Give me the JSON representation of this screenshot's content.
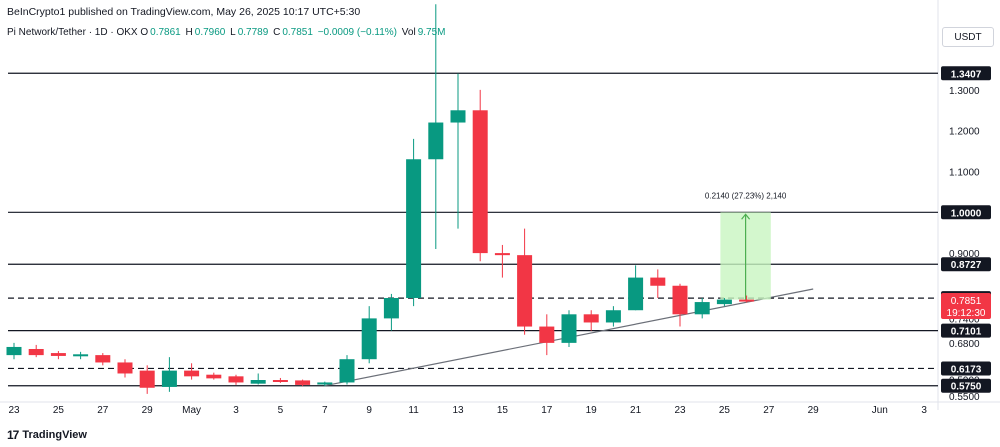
{
  "header": {
    "published": "BeInCrypto1 published on TradingView.com, May 26, 2025 10:17 UTC+5:30",
    "symbol": "Pi Network/Tether · 1D · OKX",
    "open_label": "O",
    "open": "0.7861",
    "high_label": "H",
    "high": "0.7960",
    "low_label": "L",
    "low": "0.7789",
    "close_label": "C",
    "close": "0.7851",
    "change": "−0.0009 (−0.11%)",
    "vol_label": "Vol",
    "vol": "9.75M"
  },
  "price_scale": {
    "unit": "USDT"
  },
  "footer": {
    "brand": "TradingView",
    "logo": "17"
  },
  "colors": {
    "up": "#089981",
    "down": "#f23645",
    "measure_fill": "#c8f5c0",
    "measure_line": "#4caf50"
  },
  "chart_data": {
    "type": "candlestick",
    "title": "Pi Network/Tether · 1D · OKX",
    "ylim": [
      0.54,
      1.41
    ],
    "y_ticks": [
      0.55,
      0.59,
      0.62,
      0.68,
      0.74,
      0.9,
      1.1,
      1.2,
      1.3
    ],
    "y_tick_labels": [
      "0.5500",
      "0.5900",
      "0.6200",
      "0.6800",
      "0.7400",
      "0.9000",
      "1.1000",
      "1.2000",
      "1.3000"
    ],
    "x_ticks": [
      {
        "date": "2025-04-23",
        "label": "23"
      },
      {
        "date": "2025-04-25",
        "label": "25"
      },
      {
        "date": "2025-04-27",
        "label": "27"
      },
      {
        "date": "2025-04-29",
        "label": "29"
      },
      {
        "date": "2025-05-01",
        "label": "May"
      },
      {
        "date": "2025-05-03",
        "label": "3"
      },
      {
        "date": "2025-05-05",
        "label": "5"
      },
      {
        "date": "2025-05-07",
        "label": "7"
      },
      {
        "date": "2025-05-09",
        "label": "9"
      },
      {
        "date": "2025-05-11",
        "label": "11"
      },
      {
        "date": "2025-05-13",
        "label": "13"
      },
      {
        "date": "2025-05-15",
        "label": "15"
      },
      {
        "date": "2025-05-17",
        "label": "17"
      },
      {
        "date": "2025-05-19",
        "label": "19"
      },
      {
        "date": "2025-05-21",
        "label": "21"
      },
      {
        "date": "2025-05-23",
        "label": "23"
      },
      {
        "date": "2025-05-25",
        "label": "25"
      },
      {
        "date": "2025-05-27",
        "label": "27"
      },
      {
        "date": "2025-05-29",
        "label": "29"
      },
      {
        "date": "2025-06-01",
        "label": "Jun"
      },
      {
        "date": "2025-06-03",
        "label": "3"
      }
    ],
    "candles": [
      {
        "date": "2025-04-23",
        "o": 0.65,
        "h": 0.68,
        "l": 0.64,
        "c": 0.67
      },
      {
        "date": "2025-04-24",
        "o": 0.665,
        "h": 0.675,
        "l": 0.645,
        "c": 0.65
      },
      {
        "date": "2025-04-25",
        "o": 0.655,
        "h": 0.66,
        "l": 0.64,
        "c": 0.648
      },
      {
        "date": "2025-04-26",
        "o": 0.648,
        "h": 0.658,
        "l": 0.64,
        "c": 0.652
      },
      {
        "date": "2025-04-27",
        "o": 0.65,
        "h": 0.655,
        "l": 0.625,
        "c": 0.632
      },
      {
        "date": "2025-04-28",
        "o": 0.632,
        "h": 0.64,
        "l": 0.595,
        "c": 0.605
      },
      {
        "date": "2025-04-29",
        "o": 0.612,
        "h": 0.625,
        "l": 0.555,
        "c": 0.57
      },
      {
        "date": "2025-04-30",
        "o": 0.572,
        "h": 0.645,
        "l": 0.56,
        "c": 0.612
      },
      {
        "date": "2025-05-01",
        "o": 0.612,
        "h": 0.63,
        "l": 0.59,
        "c": 0.598
      },
      {
        "date": "2025-05-02",
        "o": 0.602,
        "h": 0.607,
        "l": 0.59,
        "c": 0.593
      },
      {
        "date": "2025-05-03",
        "o": 0.598,
        "h": 0.602,
        "l": 0.577,
        "c": 0.583
      },
      {
        "date": "2025-05-04",
        "o": 0.58,
        "h": 0.605,
        "l": 0.578,
        "c": 0.589
      },
      {
        "date": "2025-05-05",
        "o": 0.589,
        "h": 0.594,
        "l": 0.582,
        "c": 0.586
      },
      {
        "date": "2025-05-06",
        "o": 0.588,
        "h": 0.59,
        "l": 0.574,
        "c": 0.577
      },
      {
        "date": "2025-05-07",
        "o": 0.578,
        "h": 0.585,
        "l": 0.574,
        "c": 0.583
      },
      {
        "date": "2025-05-08",
        "o": 0.583,
        "h": 0.65,
        "l": 0.578,
        "c": 0.64
      },
      {
        "date": "2025-05-09",
        "o": 0.64,
        "h": 0.77,
        "l": 0.63,
        "c": 0.74
      },
      {
        "date": "2025-05-10",
        "o": 0.74,
        "h": 0.8,
        "l": 0.71,
        "c": 0.79
      },
      {
        "date": "2025-05-11",
        "o": 0.79,
        "h": 1.18,
        "l": 0.77,
        "c": 1.13
      },
      {
        "date": "2025-05-12",
        "o": 1.13,
        "h": 1.51,
        "l": 0.91,
        "c": 1.22
      },
      {
        "date": "2025-05-13",
        "o": 1.22,
        "h": 1.34,
        "l": 0.96,
        "c": 1.25
      },
      {
        "date": "2025-05-14",
        "o": 1.25,
        "h": 1.3,
        "l": 0.88,
        "c": 0.9
      },
      {
        "date": "2025-05-15",
        "o": 0.9,
        "h": 0.92,
        "l": 0.84,
        "c": 0.895
      },
      {
        "date": "2025-05-16",
        "o": 0.895,
        "h": 0.96,
        "l": 0.7,
        "c": 0.72
      },
      {
        "date": "2025-05-17",
        "o": 0.72,
        "h": 0.75,
        "l": 0.65,
        "c": 0.68
      },
      {
        "date": "2025-05-18",
        "o": 0.68,
        "h": 0.76,
        "l": 0.67,
        "c": 0.75
      },
      {
        "date": "2025-05-19",
        "o": 0.75,
        "h": 0.76,
        "l": 0.71,
        "c": 0.73
      },
      {
        "date": "2025-05-20",
        "o": 0.73,
        "h": 0.77,
        "l": 0.72,
        "c": 0.76
      },
      {
        "date": "2025-05-21",
        "o": 0.76,
        "h": 0.87,
        "l": 0.76,
        "c": 0.84
      },
      {
        "date": "2025-05-22",
        "o": 0.84,
        "h": 0.86,
        "l": 0.79,
        "c": 0.82
      },
      {
        "date": "2025-05-23",
        "o": 0.82,
        "h": 0.825,
        "l": 0.72,
        "c": 0.75
      },
      {
        "date": "2025-05-24",
        "o": 0.75,
        "h": 0.79,
        "l": 0.74,
        "c": 0.78
      },
      {
        "date": "2025-05-25",
        "o": 0.775,
        "h": 0.79,
        "l": 0.77,
        "c": 0.786
      },
      {
        "date": "2025-05-26",
        "o": 0.7861,
        "h": 0.796,
        "l": 0.7789,
        "c": 0.7851
      }
    ],
    "levels": [
      {
        "value": 1.3407,
        "label": "1.3407",
        "style": "solid"
      },
      {
        "value": 1.0,
        "label": "1.0000",
        "style": "solid"
      },
      {
        "value": 0.8727,
        "label": "0.8727",
        "style": "solid"
      },
      {
        "value": 0.7897,
        "label": "0.7897",
        "style": "dashed"
      },
      {
        "value": 0.7101,
        "label": "0.7101",
        "style": "solid"
      },
      {
        "value": 0.6173,
        "label": "0.6173",
        "style": "dashed"
      },
      {
        "value": 0.575,
        "label": "0.5750",
        "style": "solid"
      }
    ],
    "current_price": {
      "value": 0.7851,
      "label": "0.7851",
      "countdown": "19:12:30"
    },
    "trendline": {
      "from": {
        "date": "2025-05-07",
        "value": 0.575
      },
      "to": {
        "date": "2025-05-29",
        "value": 0.812
      }
    },
    "measure": {
      "start_date": "2025-05-25",
      "end_date": "2025-05-27",
      "from": 0.786,
      "to": 1.0,
      "label": "0.2140 (27.23%) 2,140"
    }
  }
}
